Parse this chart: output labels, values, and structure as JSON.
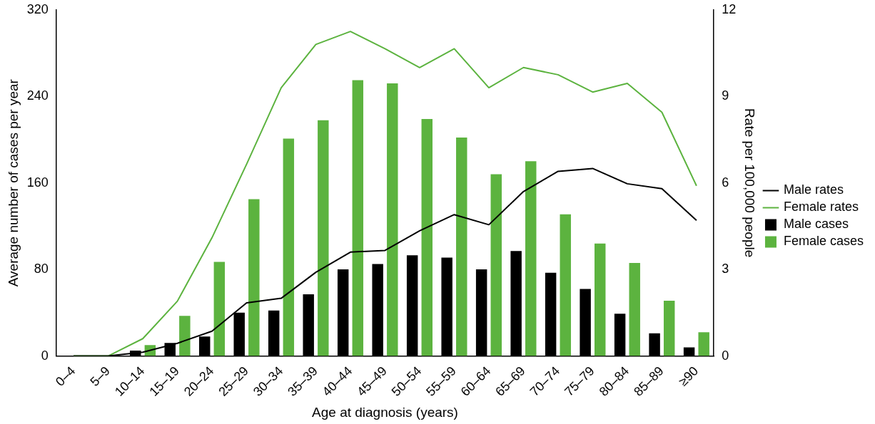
{
  "chart_data": {
    "type": "bar",
    "xlabel": "Age at diagnosis (years)",
    "ylabel": "Average number of cases per year",
    "y2label": "Rate per 100,000 people",
    "categories": [
      "0–4",
      "5–9",
      "10–14",
      "15–19",
      "20–24",
      "25–29",
      "30–34",
      "35–39",
      "40–44",
      "45–49",
      "50–54",
      "55–59",
      "60–64",
      "65–69",
      "70–74",
      "75–79",
      "80–84",
      "85–89",
      "≥90"
    ],
    "series": [
      {
        "name": "Male rates",
        "type": "line",
        "axis": "y2",
        "color": "#000000",
        "values": [
          0,
          0,
          0.13,
          0.44,
          0.86,
          1.84,
          2.0,
          2.9,
          3.6,
          3.66,
          4.34,
          4.9,
          4.55,
          5.7,
          6.4,
          6.5,
          5.97,
          5.8,
          4.7
        ]
      },
      {
        "name": "Female rates",
        "type": "line",
        "axis": "y2",
        "color": "#5cb33f",
        "values": [
          0,
          0,
          0.6,
          1.9,
          4.1,
          6.65,
          9.3,
          10.8,
          11.25,
          10.65,
          10.0,
          10.65,
          9.3,
          10.0,
          9.75,
          9.15,
          9.45,
          8.45,
          5.9
        ]
      },
      {
        "name": "Male cases",
        "color": "#000000",
        "values": [
          null,
          0,
          5,
          12,
          18,
          40,
          42,
          57,
          80,
          85,
          93,
          91,
          80,
          97,
          77,
          62,
          39,
          21,
          8
        ]
      },
      {
        "name": "Female cases",
        "color": "#5cb33f",
        "values": [
          0,
          0,
          10,
          37,
          87,
          145,
          201,
          218,
          255,
          252,
          219,
          202,
          168,
          180,
          131,
          104,
          86,
          51,
          22
        ]
      }
    ],
    "ylim": [
      0,
      320
    ],
    "yticks": [
      0,
      80,
      160,
      240,
      320
    ],
    "y2lim": [
      0,
      12
    ],
    "y2ticks": [
      0,
      3,
      6,
      9,
      12
    ],
    "grid": false,
    "legend": "right",
    "marker": "none",
    "line_style": "solid"
  }
}
